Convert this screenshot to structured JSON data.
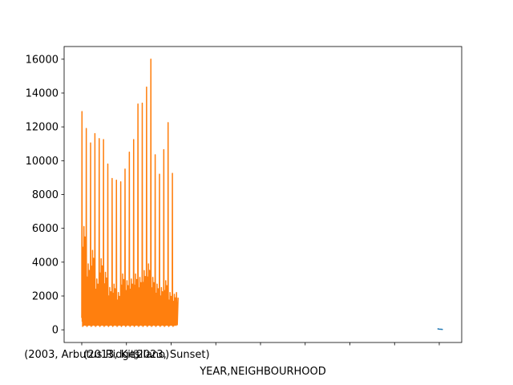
{
  "chart_data": {
    "type": "line",
    "title": "",
    "xlabel": "YEAR,NEIGHBOURHOOD",
    "ylabel": "",
    "ylim": [
      -750,
      16750
    ],
    "y_ticks": [
      0,
      2000,
      4000,
      6000,
      8000,
      10000,
      12000,
      14000,
      16000
    ],
    "x_tick_labels": [
      "(2003, Arbutus Ridge)",
      "(2013, Kitsilano)",
      "(2023, Sunset)"
    ],
    "grid": false,
    "legend": "none",
    "series": [
      {
        "color": "#1f77b4",
        "x_range": [
          0.995,
          1.01
        ],
        "values": [
          60,
          40,
          30,
          20
        ]
      },
      {
        "color": "#ff7f0e",
        "x_range": [
          0.0,
          0.265
        ],
        "envelope_peaks": [
          12900,
          11900,
          11050,
          11600,
          11300,
          11250,
          9800,
          8950,
          8850,
          8750,
          9500,
          10500,
          11250,
          13350,
          13400,
          14350,
          16000,
          10350,
          9200,
          10650,
          12250,
          9250
        ],
        "secondary_peaks": [
          6100,
          3900,
          4700,
          3000,
          4200,
          3400,
          2500,
          2700,
          2200,
          3300,
          2900,
          3000,
          3300,
          3100,
          3500,
          3900,
          3100,
          2700,
          2500,
          2900,
          2200,
          2100
        ],
        "typical_low": 200
      }
    ]
  }
}
